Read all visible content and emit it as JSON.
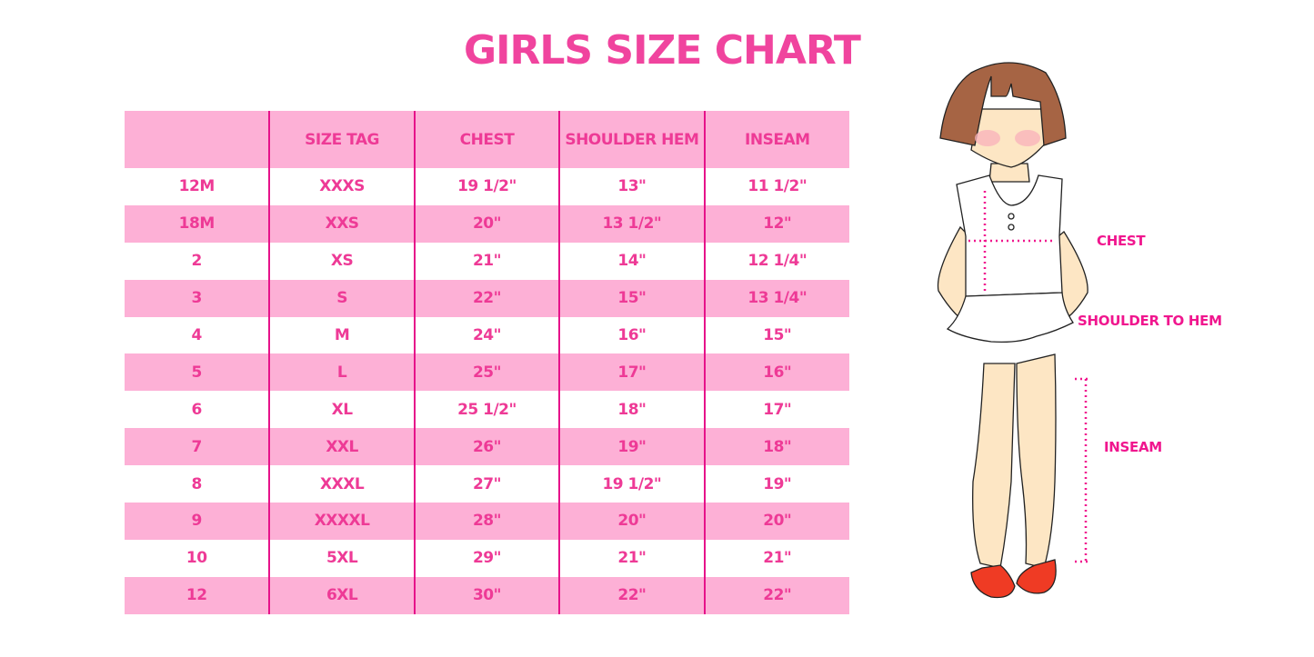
{
  "title": "GIRLS SIZE CHART",
  "table": {
    "headers": [
      "",
      "SIZE TAG",
      "CHEST",
      "SHOULDER HEM",
      "INSEAM"
    ],
    "rows": [
      [
        "12M",
        "XXXS",
        "19 1/2\"",
        "13\"",
        "11 1/2\""
      ],
      [
        "18M",
        "XXS",
        "20\"",
        "13 1/2\"",
        "12\""
      ],
      [
        "2",
        "XS",
        "21\"",
        "14\"",
        "12 1/4\""
      ],
      [
        "3",
        "S",
        "22\"",
        "15\"",
        "13 1/4\""
      ],
      [
        "4",
        "M",
        "24\"",
        "16\"",
        "15\""
      ],
      [
        "5",
        "L",
        "25\"",
        "17\"",
        "16\""
      ],
      [
        "6",
        "XL",
        "25 1/2\"",
        "18\"",
        "17\""
      ],
      [
        "7",
        "XXL",
        "26\"",
        "19\"",
        "18\""
      ],
      [
        "8",
        "XXXL",
        "27\"",
        "19 1/2\"",
        "19\""
      ],
      [
        "9",
        "XXXXL",
        "28\"",
        "20\"",
        "20\""
      ],
      [
        "10",
        "5XL",
        "29\"",
        "21\"",
        "21\""
      ],
      [
        "12",
        "6XL",
        "30\"",
        "22\"",
        "22\""
      ]
    ]
  },
  "illustration": {
    "labels": {
      "chest": "CHEST",
      "shoulder_to_hem": "SHOULDER TO HEM",
      "inseam": "INSEAM"
    }
  },
  "colors": {
    "accent": "#f0449e",
    "row_pink": "#fdb0d6",
    "divider": "#e6128a"
  }
}
